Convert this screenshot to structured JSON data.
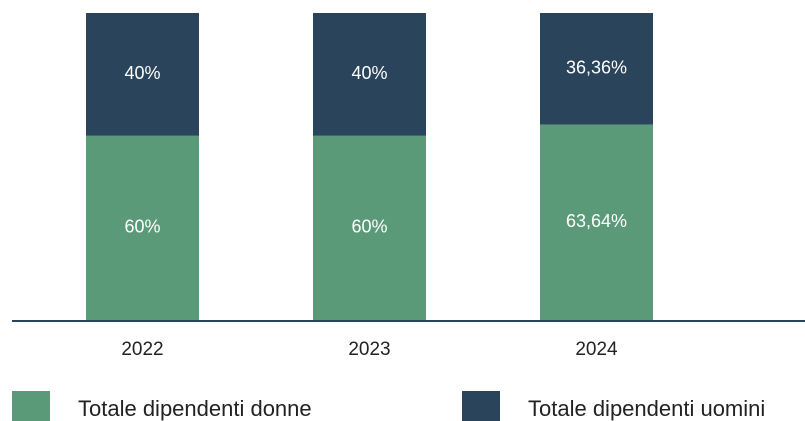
{
  "chart_data": {
    "type": "stacked_bar",
    "categories": [
      "2022",
      "2023",
      "2024"
    ],
    "series": [
      {
        "name": "Totale dipendenti donne",
        "color": "#5a9a78",
        "values": [
          60,
          60,
          63.64
        ],
        "value_labels": [
          "60%",
          "60%",
          "63,64%"
        ]
      },
      {
        "name": "Totale dipendenti uomini",
        "color": "#29445b",
        "values": [
          40,
          40,
          36.36
        ],
        "value_labels": [
          "40%",
          "40%",
          "36,36%"
        ]
      }
    ]
  }
}
